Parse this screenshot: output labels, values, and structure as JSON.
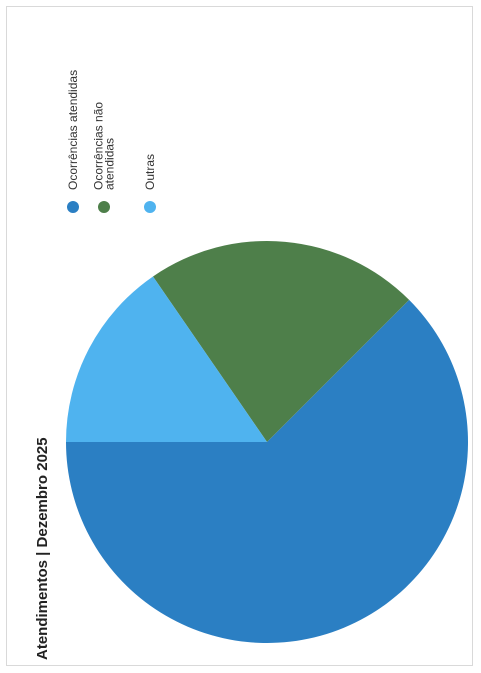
{
  "colors": {
    "atendidas": "#2b7fc3",
    "nao_atendidas": "#4e7f4a",
    "outras": "#4fb3ef"
  },
  "chart_data": {
    "type": "pie",
    "title": "Atendimentos | Dezembro 2025",
    "legend_placement": "top",
    "categories": [
      "Ocorrências atendidas",
      "Ocorrências não atendidas",
      "Outras"
    ],
    "legend_lines": [
      [
        "Ocorrências atendidas"
      ],
      [
        "Ocorrências não",
        "atendidas"
      ],
      [
        "Outras"
      ]
    ],
    "values": [
      62.5,
      22.1,
      15.4
    ],
    "data_labels": [
      "",
      "",
      ""
    ]
  }
}
